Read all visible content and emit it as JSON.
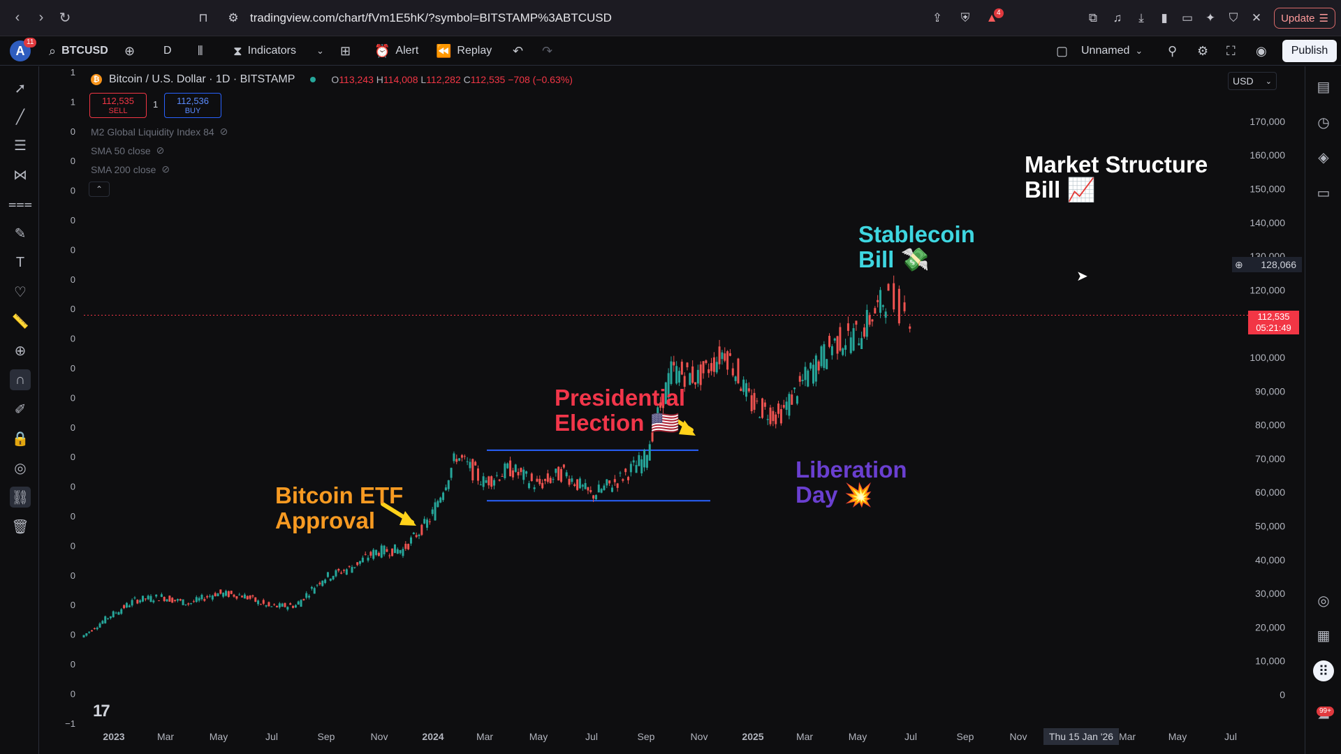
{
  "browser": {
    "url": "tradingview.com/chart/fVm1E5hK/?symbol=BITSTAMP%3ABTCUSD",
    "update_label": "Update",
    "shield_badge": "4"
  },
  "toolbar": {
    "avatar_letter": "A",
    "avatar_badge": "11",
    "symbol": "BTCUSD",
    "interval": "D",
    "indicators": "Indicators",
    "alert": "Alert",
    "replay": "Replay",
    "layout_name": "Unnamed",
    "publish": "Publish"
  },
  "legend": {
    "title": "Bitcoin / U.S. Dollar · 1D · BITSTAMP",
    "open_label": "O",
    "open": "113,243",
    "high_label": "H",
    "high": "114,008",
    "low_label": "L",
    "low": "112,282",
    "close_label": "C",
    "close": "112,535",
    "change": "−708 (−0.63%)",
    "sell_price": "112,535",
    "sell_label": "SELL",
    "qty": "1",
    "buy_price": "112,536",
    "buy_label": "BUY",
    "indicators": [
      "M2 Global Liquidity Index 84",
      "SMA 50 close",
      "SMA 200 close"
    ]
  },
  "currency": "USD",
  "left_scale_values": [
    "1",
    "1",
    "0",
    "0",
    "0",
    "0",
    "0",
    "0",
    "0",
    "0",
    "0",
    "0",
    "0",
    "0",
    "0",
    "0",
    "0",
    "0",
    "0",
    "0",
    "0",
    "0",
    "−1"
  ],
  "price_axis": [
    "170,000",
    "160,000",
    "150,000",
    "140,000",
    "130,000",
    "120,000",
    "110,000",
    "100,000",
    "90,000",
    "80,000",
    "70,000",
    "60,000",
    "50,000",
    "40,000",
    "30,000",
    "20,000",
    "10,000",
    "0"
  ],
  "time_axis": [
    "2023",
    "Mar",
    "May",
    "Jul",
    "Sep",
    "Nov",
    "2024",
    "Mar",
    "May",
    "Jul",
    "Sep",
    "Nov",
    "2025",
    "Mar",
    "May",
    "Jul",
    "Sep",
    "Nov",
    "Mar",
    "May",
    "Jul"
  ],
  "crosshair": {
    "price": "128,066",
    "date": "Thu 15 Jan '26"
  },
  "last_price": {
    "price": "112,535",
    "countdown": "05:21:49"
  },
  "annotations": {
    "etf": [
      "Bitcoin ETF",
      "Approval"
    ],
    "election": [
      "Presidential",
      "Election 🇺🇸"
    ],
    "liberation": [
      "Liberation",
      "Day 💥"
    ],
    "stablecoin": [
      "Stablecoin",
      "Bill 💸"
    ],
    "market": [
      "Market Structure",
      "Bill 📈"
    ]
  },
  "colors": {
    "up": "#26a69a",
    "down": "#ef5350",
    "etf": "#f79a22",
    "election": "#f2364a",
    "liberation": "#6a3fd0",
    "stablecoin": "#3ed6e0",
    "market": "#ffffff",
    "range_lines": "#2962ff"
  },
  "chart_data": {
    "type": "line",
    "title": "Bitcoin / U.S. Dollar · 1D · BITSTAMP",
    "x": [
      "2023-01",
      "2023-02",
      "2023-03",
      "2023-04",
      "2023-05",
      "2023-06",
      "2023-07",
      "2023-08",
      "2023-09",
      "2023-10",
      "2023-11",
      "2023-12",
      "2024-01",
      "2024-02",
      "2024-03",
      "2024-04",
      "2024-05",
      "2024-06",
      "2024-07",
      "2024-08",
      "2024-09",
      "2024-10",
      "2024-11",
      "2024-12",
      "2025-01",
      "2025-02",
      "2025-03",
      "2025-04",
      "2025-05",
      "2025-06",
      "2025-07",
      "2025-08"
    ],
    "series": [
      {
        "values": [
          17000,
          23000,
          28000,
          29000,
          27000,
          30000,
          29500,
          26000,
          26500,
          34500,
          37500,
          42500,
          43000,
          52000,
          71000,
          63000,
          67000,
          62000,
          66000,
          59000,
          63500,
          70000,
          96000,
          94000,
          102000,
          86000,
          82500,
          94000,
          104000,
          107000,
          118000,
          112535
        ]
      }
    ],
    "ylim": [
      0,
      175000
    ],
    "range_box": {
      "upper": 72500,
      "lower": 57500
    }
  }
}
